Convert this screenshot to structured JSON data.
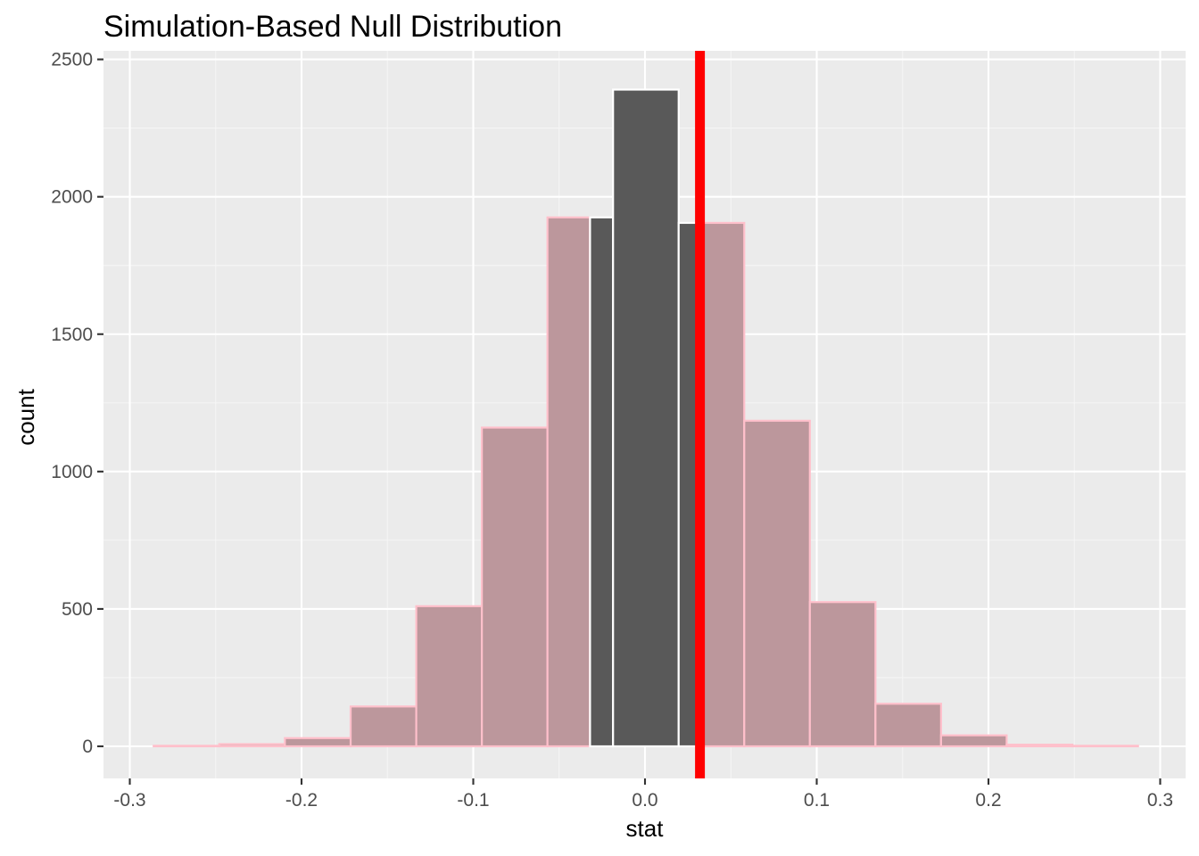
{
  "chart_data": {
    "type": "bar",
    "title": "Simulation-Based Null Distribution",
    "xlabel": "stat",
    "ylabel": "count",
    "xlim": [
      -0.3,
      0.3
    ],
    "ylim": [
      0,
      2500
    ],
    "x_ticks": [
      -0.3,
      -0.2,
      -0.1,
      0.0,
      0.1,
      0.2,
      0.3
    ],
    "x_tick_labels": [
      "-0.3",
      "-0.2",
      "-0.1",
      "0.0",
      "0.1",
      "0.2",
      "0.3"
    ],
    "y_ticks": [
      0,
      500,
      1000,
      1500,
      2000,
      2500
    ],
    "y_tick_labels": [
      "0",
      "500",
      "1000",
      "1500",
      "2000",
      "2500"
    ],
    "grid": true,
    "bins": [
      {
        "x0": -0.2861,
        "x1": -0.2479,
        "count": 2,
        "shaded": true
      },
      {
        "x0": -0.2479,
        "x1": -0.2097,
        "count": 8,
        "shaded": true
      },
      {
        "x0": -0.2097,
        "x1": -0.1714,
        "count": 30,
        "shaded": true
      },
      {
        "x0": -0.1714,
        "x1": -0.1332,
        "count": 145,
        "shaded": true
      },
      {
        "x0": -0.1332,
        "x1": -0.095,
        "count": 510,
        "shaded": true
      },
      {
        "x0": -0.095,
        "x1": -0.0568,
        "count": 1160,
        "shaded": true
      },
      {
        "x0": -0.0568,
        "x1": -0.032,
        "count": 1925,
        "shaded": true
      },
      {
        "x0": -0.032,
        "x1": -0.0186,
        "count": 1925,
        "shaded": false
      },
      {
        "x0": -0.0186,
        "x1": 0.0196,
        "count": 2390,
        "shaded": false
      },
      {
        "x0": 0.0196,
        "x1": 0.032,
        "count": 1905,
        "shaded": false
      },
      {
        "x0": 0.032,
        "x1": 0.0578,
        "count": 1905,
        "shaded": true
      },
      {
        "x0": 0.0578,
        "x1": 0.096,
        "count": 1185,
        "shaded": true
      },
      {
        "x0": 0.096,
        "x1": 0.1342,
        "count": 525,
        "shaded": true
      },
      {
        "x0": 0.1342,
        "x1": 0.1724,
        "count": 155,
        "shaded": true
      },
      {
        "x0": 0.1724,
        "x1": 0.2106,
        "count": 40,
        "shaded": true
      },
      {
        "x0": 0.2106,
        "x1": 0.2489,
        "count": 6,
        "shaded": true
      },
      {
        "x0": 0.2489,
        "x1": 0.2871,
        "count": 2,
        "shaded": true
      }
    ],
    "observed_stat": 0.032,
    "colors": {
      "bar_fill": "#595959",
      "bar_outline": "#FFFFFF",
      "shade_fill": "#BC979C",
      "shade_outline": "#FFC0CB",
      "obs_line": "#FF0000",
      "panel_bg": "#EBEBEB",
      "grid_major": "#FFFFFF",
      "grid_minor": "#F5F5F5",
      "tick_text": "#4D4D4D"
    }
  }
}
